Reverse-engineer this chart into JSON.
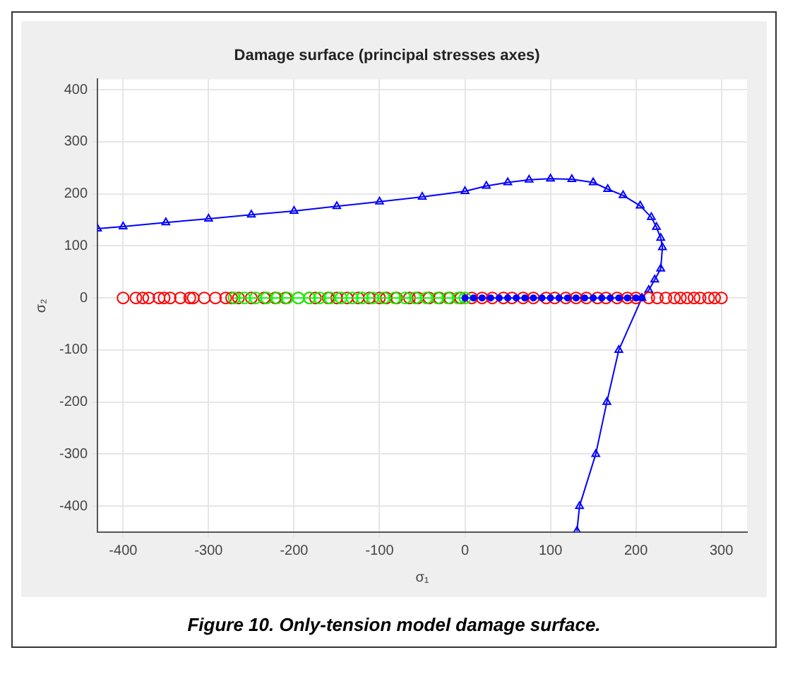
{
  "chart_data": {
    "type": "line",
    "title": "Damage surface (principal stresses axes)",
    "xlabel": "σ₁",
    "ylabel": "σ₂",
    "annotations": [
      "Figure 10. Only-tension model damage surface."
    ],
    "xlim": [
      -430,
      330
    ],
    "ylim": [
      -450,
      420
    ],
    "xticks": [
      -400,
      -300,
      -200,
      -100,
      0,
      100,
      200,
      300
    ],
    "yticks": [
      -400,
      -300,
      -200,
      -100,
      0,
      100,
      200,
      300,
      400
    ],
    "grid": true,
    "legend": false,
    "series": [
      {
        "marker": "triangle",
        "color": "#0000ff",
        "x": [
          -430,
          -400,
          -350,
          -300,
          -250,
          -200,
          -150,
          -100,
          -50,
          0,
          25,
          50,
          75,
          100,
          125,
          150,
          167,
          185,
          205,
          218,
          224,
          229,
          231,
          229,
          222,
          215,
          207,
          180,
          166,
          153,
          134,
          131
        ],
        "values": [
          133,
          137,
          145,
          152,
          160,
          167,
          176,
          185,
          194,
          205,
          215,
          222,
          227,
          229,
          228,
          222,
          209,
          197,
          177,
          155,
          136,
          115,
          97,
          56,
          35,
          15,
          0,
          -100,
          -200,
          -300,
          -400,
          -448
        ]
      },
      {
        "type": "scatter",
        "marker": "circle",
        "color": "#ff0000",
        "x": [
          -400,
          -385,
          -377,
          -370,
          -358,
          -352,
          -345,
          -333,
          -322,
          -318,
          -305,
          -292,
          -280,
          -273,
          -265,
          -250,
          -235,
          -222,
          -210,
          -195,
          -182,
          -175,
          -160,
          -150,
          -138,
          -125,
          -112,
          -100,
          -92,
          -80,
          -65,
          -55,
          -42,
          -30,
          -18,
          -5,
          8,
          20,
          32,
          45,
          55,
          68,
          80,
          95,
          105,
          118,
          130,
          142,
          155,
          165,
          178,
          190,
          200,
          215,
          225,
          235,
          245,
          252,
          260,
          268,
          275,
          285,
          292,
          300
        ],
        "values": [
          0,
          0,
          0,
          0,
          0,
          0,
          0,
          0,
          0,
          0,
          0,
          0,
          0,
          0,
          0,
          0,
          0,
          0,
          0,
          0,
          0,
          0,
          0,
          0,
          0,
          0,
          0,
          0,
          0,
          0,
          0,
          0,
          0,
          0,
          0,
          0,
          0,
          0,
          0,
          0,
          0,
          0,
          0,
          0,
          0,
          0,
          0,
          0,
          0,
          0,
          0,
          0,
          0,
          0,
          0,
          0,
          0,
          0,
          0,
          0,
          0,
          0,
          0,
          0
        ]
      },
      {
        "marker": "circle",
        "color": "#00ff00",
        "x": [
          -270,
          -258,
          -245,
          -232,
          -220,
          -208,
          -195,
          -182,
          -170,
          -158,
          -145,
          -132,
          -120,
          -108,
          -95,
          -82,
          -70,
          -58,
          -45,
          -32,
          -20,
          -8,
          0
        ],
        "values": [
          0,
          0,
          0,
          0,
          0,
          0,
          0,
          0,
          0,
          0,
          0,
          0,
          0,
          0,
          0,
          0,
          0,
          0,
          0,
          0,
          0,
          0,
          0
        ]
      },
      {
        "marker": "circle",
        "color": "#0000ff",
        "x": [
          0,
          10,
          20,
          30,
          40,
          50,
          60,
          70,
          80,
          90,
          100,
          110,
          120,
          130,
          140,
          150,
          160,
          170,
          180,
          190,
          200,
          207
        ],
        "values": [
          0,
          0,
          0,
          0,
          0,
          0,
          0,
          0,
          0,
          0,
          0,
          0,
          0,
          0,
          0,
          0,
          0,
          0,
          0,
          0,
          0,
          0
        ]
      }
    ]
  }
}
